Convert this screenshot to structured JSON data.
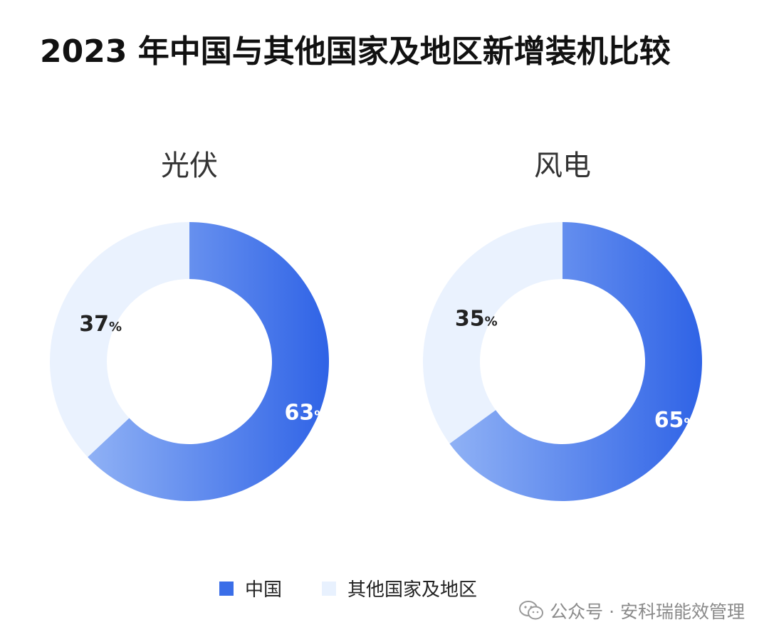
{
  "chart_data": {
    "type": "pie",
    "title": "2023 年中国与其他国家及地区新增装机比较",
    "legend": {
      "placement": "bottom-center",
      "items": [
        {
          "name": "中国",
          "color": "#3a6ee8"
        },
        {
          "name": "其他国家及地区",
          "color": "#e8f1fe"
        }
      ]
    },
    "charts": [
      {
        "title": "光伏",
        "slices": [
          {
            "name": "中国",
            "value": 63,
            "label": "63",
            "unit": "%"
          },
          {
            "name": "其他国家及地区",
            "value": 37,
            "label": "37",
            "unit": "%"
          }
        ]
      },
      {
        "title": "风电",
        "slices": [
          {
            "name": "中国",
            "value": 65,
            "label": "65",
            "unit": "%"
          },
          {
            "name": "其他国家及地区",
            "value": 35,
            "label": "35",
            "unit": "%"
          }
        ]
      }
    ]
  },
  "colors": {
    "china_dark": "#2f63e6",
    "china_light": "#8fb1f5",
    "other": "#eaf2fe",
    "label_on_dark": "#ffffff",
    "label_on_light": "#222222"
  },
  "watermark": {
    "text": "公众号 · 安科瑞能效管理",
    "icon": "wechat-icon"
  }
}
